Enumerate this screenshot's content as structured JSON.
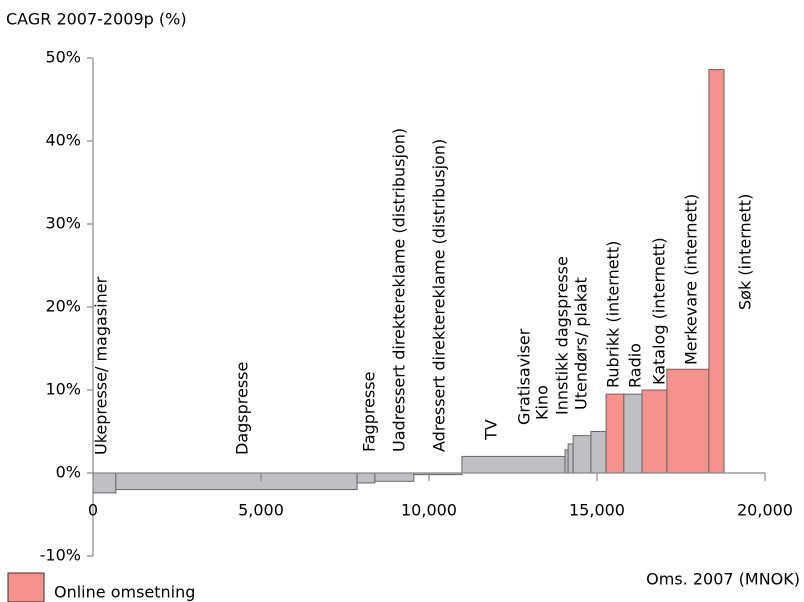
{
  "chart_data": {
    "type": "variable-width-bar",
    "title": "CAGR 2007-2009p  (%)",
    "x_label": "Oms. 2007 (MNOK)",
    "categories": [
      "Ukepresse/ magasiner",
      "Dagspresse",
      "Fagpresse",
      "Uadressert direktereklame (distribusjon)",
      "Adressert direktereklame (distribusjon)",
      "TV",
      "Gratisaviser",
      "Kino",
      "Innstikk dagspresse",
      "Utendørs/ plakat",
      "Rubrikk (internett)",
      "Radio",
      "Katalog (internett)",
      "Merkevare (internett)",
      "Søk (internett)"
    ],
    "x_edges": [
      0,
      680,
      7860,
      8390,
      9550,
      10980,
      14050,
      14140,
      14290,
      14820,
      15270,
      15800,
      16340,
      17080,
      18330,
      18780
    ],
    "values": [
      -2.4,
      -2.0,
      -1.2,
      -1.0,
      -0.2,
      2.0,
      2.8,
      3.5,
      4.5,
      5.0,
      9.5,
      9.5,
      10.0,
      12.5,
      48.6
    ],
    "colors": [
      "#c0c0c4",
      "#c0c0c4",
      "#c0c0c4",
      "#c0c0c4",
      "#c0c0c4",
      "#c0c0c4",
      "#c0c0c4",
      "#c0c0c4",
      "#c0c0c4",
      "#c0c0c4",
      "#f4928b",
      "#c0c0c4",
      "#f4928b",
      "#f4928b",
      "#f4928b"
    ],
    "legend": {
      "label": "Online omsetning",
      "color": "#f4928b"
    },
    "xlim": [
      0,
      20000
    ],
    "xticks": [
      0,
      {
        "value": 5000,
        "label": "5,000"
      },
      {
        "value": 10000,
        "label": "10,000"
      },
      {
        "value": 15000,
        "label": "15,000"
      },
      {
        "value": 20000,
        "label": "20,000"
      }
    ],
    "ylim": [
      -10,
      50
    ],
    "yticks": [
      {
        "value": -10,
        "label": "-10%"
      },
      {
        "value": 0,
        "label": "0%"
      },
      {
        "value": 10,
        "label": "10%"
      },
      {
        "value": 20,
        "label": "20%"
      },
      {
        "value": 30,
        "label": "30%"
      },
      {
        "value": 40,
        "label": "40%"
      },
      {
        "value": 50,
        "label": "50%"
      }
    ]
  }
}
